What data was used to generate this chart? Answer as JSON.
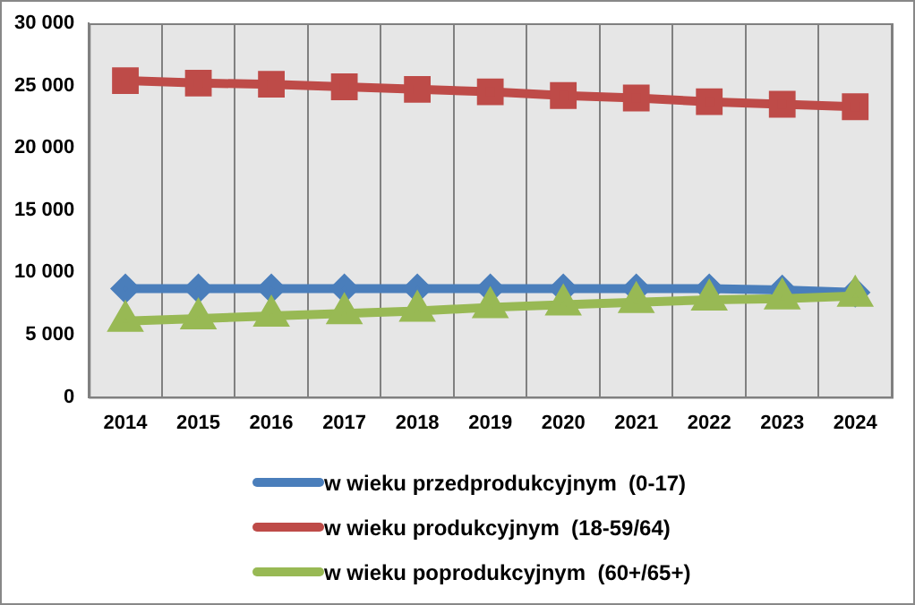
{
  "chart_data": {
    "type": "line",
    "categories": [
      "2014",
      "2015",
      "2016",
      "2017",
      "2018",
      "2019",
      "2020",
      "2021",
      "2022",
      "2023",
      "2024"
    ],
    "series": [
      {
        "name": "w wieku przedprodukcyjnym  (0-17)",
        "color": "#4a7ebb",
        "marker": "diamond",
        "values": [
          8700,
          8700,
          8700,
          8700,
          8700,
          8700,
          8700,
          8700,
          8700,
          8600,
          8400
        ]
      },
      {
        "name": "w wieku produkcyjnym  (18-59/64)",
        "color": "#be4b48",
        "marker": "square",
        "values": [
          25400,
          25200,
          25100,
          24900,
          24700,
          24500,
          24200,
          24000,
          23700,
          23500,
          23300
        ]
      },
      {
        "name": "w wieku poprodukcyjnym  (60+/65+)",
        "color": "#98b954",
        "marker": "triangle",
        "values": [
          6100,
          6300,
          6500,
          6700,
          6900,
          7200,
          7400,
          7600,
          7800,
          7900,
          8100
        ]
      }
    ],
    "ylim": [
      0,
      30000
    ],
    "yticks": [
      {
        "value": 0,
        "label": "0"
      },
      {
        "value": 5000,
        "label": "5 000"
      },
      {
        "value": 10000,
        "label": "10 000"
      },
      {
        "value": 15000,
        "label": "15 000"
      },
      {
        "value": 20000,
        "label": "20 000"
      },
      {
        "value": 25000,
        "label": "25 000"
      },
      {
        "value": 30000,
        "label": "30 000"
      }
    ],
    "grid": "x",
    "legend": "bottom"
  }
}
